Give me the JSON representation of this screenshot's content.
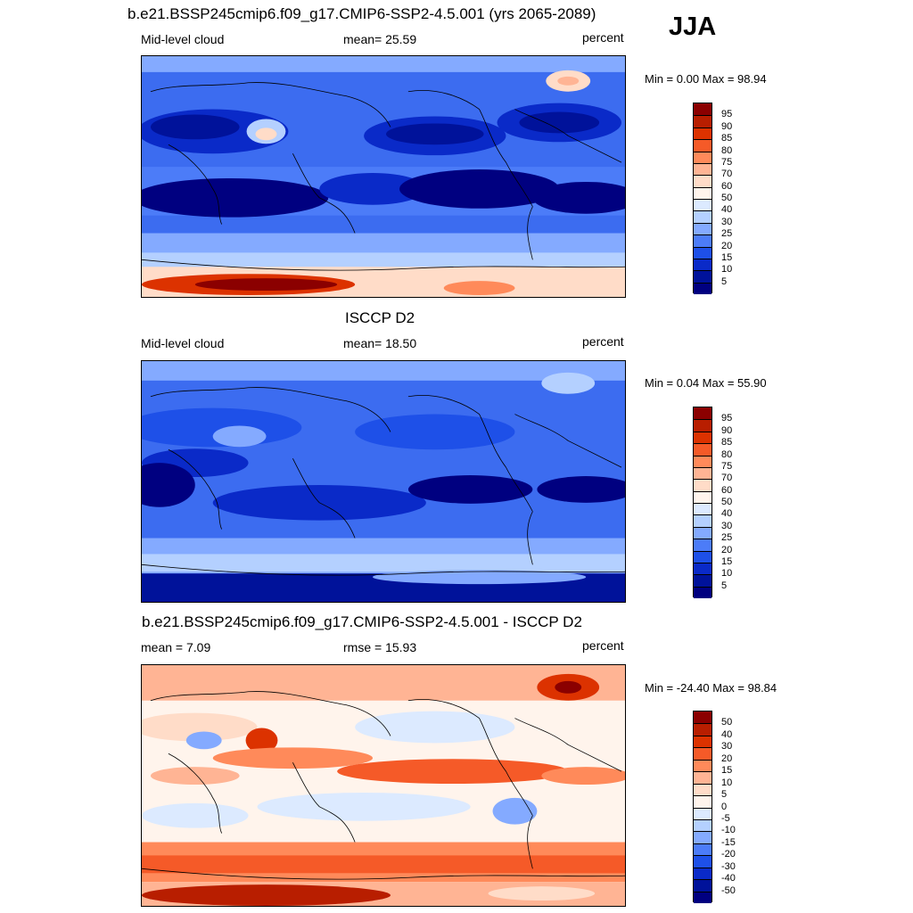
{
  "season": "JJA",
  "panels": [
    {
      "title": "b.e21.BSSP245cmip6.f09_g17.CMIP6-SSP2-4.5.001 (yrs 2065-2089)",
      "left_label": "Mid-level cloud",
      "center_label": "mean=  25.59",
      "right_label": "percent",
      "minmax": "Min =   0.00 Max =  98.94",
      "colorbar_labels": [
        "95",
        "90",
        "85",
        "80",
        "75",
        "70",
        "60",
        "50",
        "40",
        "30",
        "25",
        "20",
        "15",
        "10",
        "5"
      ]
    },
    {
      "title": "ISCCP D2",
      "left_label": "Mid-level cloud",
      "center_label": "mean=  18.50",
      "right_label": "percent",
      "minmax": "Min =   0.04 Max =  55.90",
      "colorbar_labels": [
        "95",
        "90",
        "85",
        "80",
        "75",
        "70",
        "60",
        "50",
        "40",
        "30",
        "25",
        "20",
        "15",
        "10",
        "5"
      ]
    },
    {
      "title": "b.e21.BSSP245cmip6.f09_g17.CMIP6-SSP2-4.5.001 - ISCCP D2",
      "left_label": "mean =   7.09",
      "center_label": "rmse =  15.93",
      "right_label": "percent",
      "minmax": "Min = -24.40 Max =  98.84",
      "colorbar_labels": [
        "50",
        "40",
        "30",
        "20",
        "15",
        "10",
        "5",
        "0",
        "-5",
        "-10",
        "-15",
        "-20",
        "-30",
        "-40",
        "-50"
      ]
    }
  ],
  "colors": {
    "abs_scale": [
      "#8b0000",
      "#b81e00",
      "#dc3200",
      "#f55a28",
      "#ff8a5a",
      "#ffb494",
      "#ffdcc8",
      "#fff4ec",
      "#dceaff",
      "#b4d0ff",
      "#84aaff",
      "#4c7cf8",
      "#1e50e8",
      "#0a2ac8",
      "#00129a",
      "#000080"
    ],
    "diff_scale": [
      "#8b0000",
      "#b81e00",
      "#dc3200",
      "#f55a28",
      "#ff8a5a",
      "#ffb494",
      "#ffdcc8",
      "#fff4ec",
      "#dceaff",
      "#b4d0ff",
      "#84aaff",
      "#4c7cf8",
      "#1e50e8",
      "#0a2ac8",
      "#00129a",
      "#000080"
    ]
  },
  "chart_data": [
    {
      "type": "heatmap",
      "title": "b.e21.BSSP245cmip6.f09_g17.CMIP6-SSP2-4.5.001 (yrs 2065-2089)",
      "variable": "Mid-level cloud",
      "units": "percent",
      "mean": 25.59,
      "min": 0.0,
      "max": 98.94,
      "colorbar_levels": [
        5,
        10,
        15,
        20,
        25,
        30,
        40,
        50,
        60,
        70,
        75,
        80,
        85,
        90,
        95
      ]
    },
    {
      "type": "heatmap",
      "title": "ISCCP D2",
      "variable": "Mid-level cloud",
      "units": "percent",
      "mean": 18.5,
      "min": 0.04,
      "max": 55.9,
      "colorbar_levels": [
        5,
        10,
        15,
        20,
        25,
        30,
        40,
        50,
        60,
        70,
        75,
        80,
        85,
        90,
        95
      ]
    },
    {
      "type": "heatmap",
      "title": "b.e21.BSSP245cmip6.f09_g17.CMIP6-SSP2-4.5.001 - ISCCP D2",
      "units": "percent",
      "mean": 7.09,
      "rmse": 15.93,
      "min": -24.4,
      "max": 98.84,
      "colorbar_levels": [
        -50,
        -40,
        -30,
        -20,
        -15,
        -10,
        -5,
        0,
        5,
        10,
        15,
        20,
        30,
        40,
        50
      ]
    }
  ]
}
